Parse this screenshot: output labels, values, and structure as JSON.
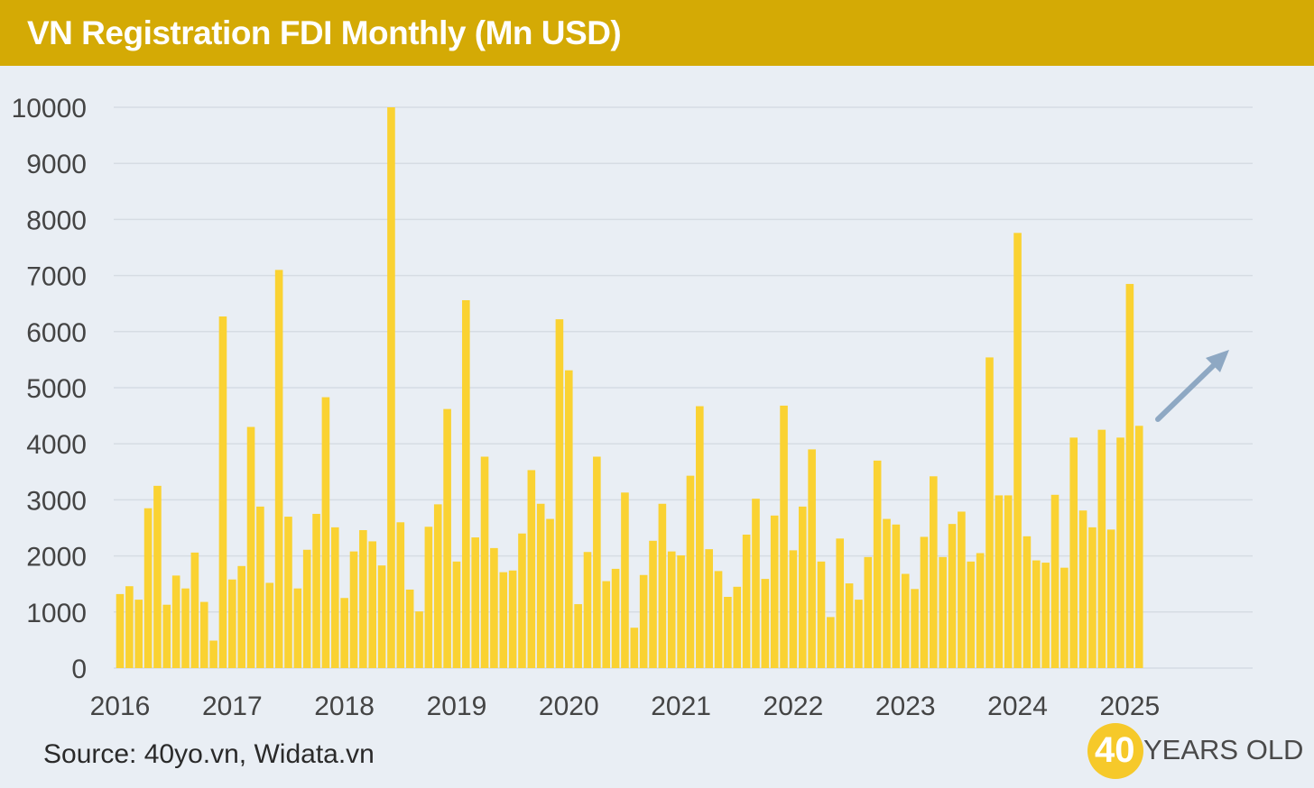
{
  "header": {
    "title": "VN Registration FDI Monthly (Mn USD)"
  },
  "footer": {
    "source": "Source: 40yo.vn, Widata.vn"
  },
  "logo": {
    "number": "40",
    "text": "YEARS OLD"
  },
  "colors": {
    "header_bg": "#d4aa05",
    "bar": "#fad232",
    "background": "#e9eef4",
    "grid": "#d6dce3",
    "arrow": "#8ea8c3",
    "logo_circle": "#f6c92a"
  },
  "chart_data": {
    "type": "bar",
    "title": "VN Registration FDI Monthly (Mn USD)",
    "xlabel": "",
    "ylabel": "",
    "ylim": [
      0,
      10000
    ],
    "yticks": [
      0,
      1000,
      2000,
      3000,
      4000,
      5000,
      6000,
      7000,
      8000,
      9000,
      10000
    ],
    "x_tick_labels": [
      "2016",
      "2017",
      "2018",
      "2019",
      "2020",
      "2021",
      "2022",
      "2023",
      "2024",
      "2025"
    ],
    "grid": true,
    "annotation": "upward arrow near the last bars",
    "start_month": "2016-01",
    "values": [
      1320,
      1460,
      1220,
      2850,
      3250,
      1130,
      1650,
      1420,
      2060,
      1180,
      490,
      6270,
      1580,
      1820,
      4300,
      2880,
      1520,
      7100,
      2700,
      1420,
      2110,
      2750,
      4830,
      2510,
      1250,
      2080,
      2460,
      2260,
      1830,
      10000,
      2600,
      1400,
      1010,
      2520,
      2920,
      4620,
      1900,
      6560,
      2330,
      3770,
      2140,
      1710,
      1740,
      2400,
      3530,
      2930,
      2660,
      6220,
      5310,
      1140,
      2070,
      3770,
      1550,
      1770,
      3130,
      720,
      1660,
      2270,
      2930,
      2080,
      2010,
      3430,
      4670,
      2120,
      1730,
      1270,
      1450,
      2380,
      3020,
      1590,
      2720,
      4680,
      2100,
      2880,
      3900,
      1900,
      910,
      2310,
      1510,
      1220,
      1980,
      3700,
      2660,
      2560,
      1680,
      1410,
      2340,
      3420,
      1980,
      2570,
      2790,
      1900,
      2050,
      5540,
      3080,
      3080,
      7760,
      2350,
      1920,
      1880,
      3090,
      1790,
      4110,
      2810,
      2510,
      4250,
      2470,
      4110,
      6850,
      4320
    ]
  }
}
